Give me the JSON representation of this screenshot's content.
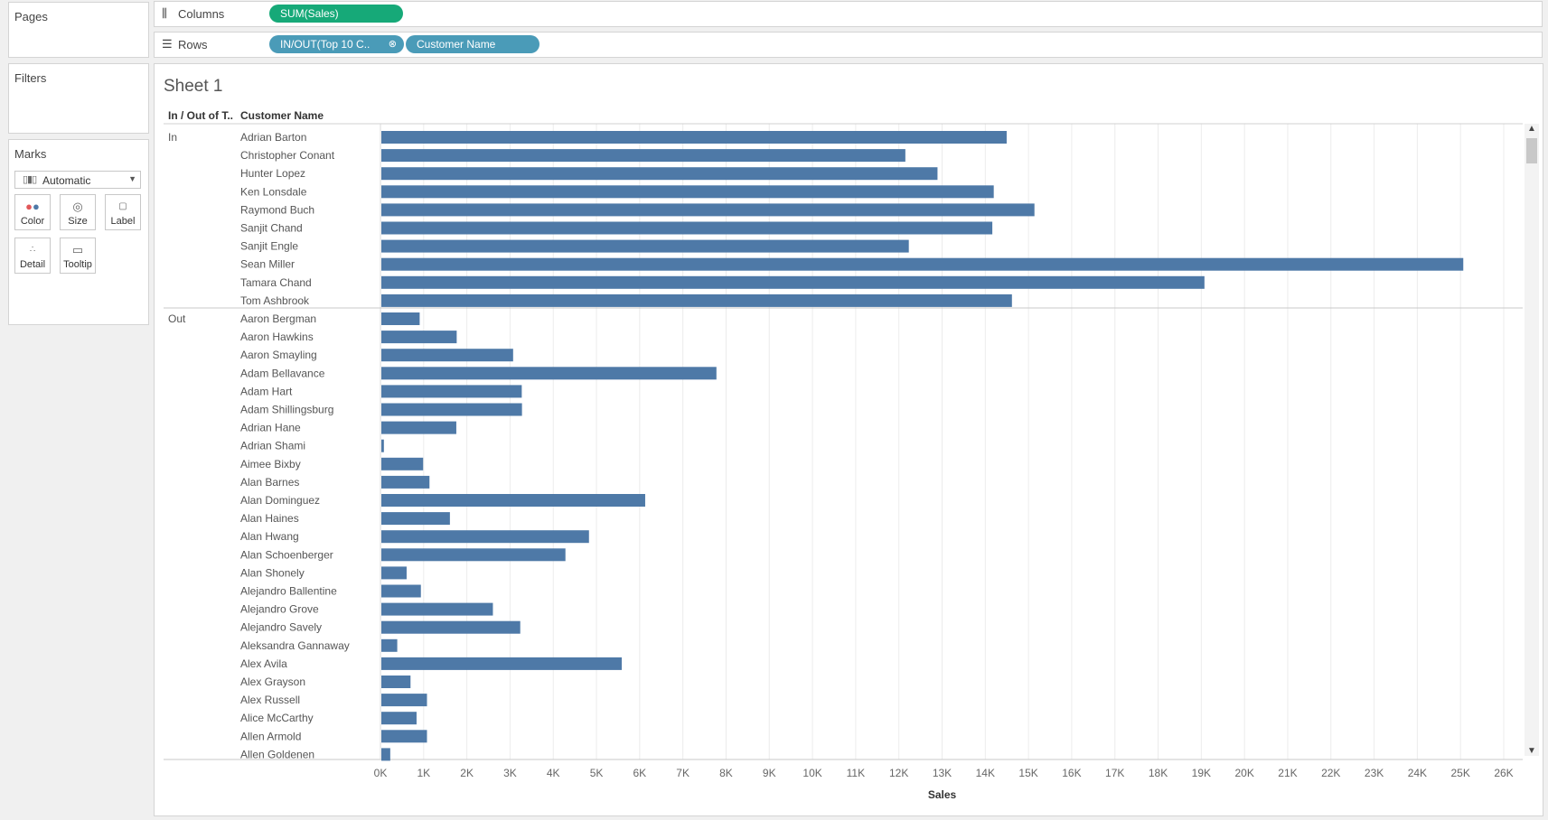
{
  "shelves": {
    "pages_label": "Pages",
    "filters_label": "Filters",
    "columns_label": "Columns",
    "rows_label": "Rows",
    "columns_pill": "SUM(Sales)",
    "rows_pills": [
      "IN/OUT(Top 10 C..",
      "Customer Name"
    ]
  },
  "marks": {
    "title": "Marks",
    "type": "Automatic",
    "buttons": [
      "Color",
      "Size",
      "Label",
      "Detail",
      "Tooltip"
    ]
  },
  "sheet": {
    "title": "Sheet 1",
    "header_inout": "In / Out of T..",
    "header_customer": "Customer Name"
  },
  "chart_data": {
    "type": "bar",
    "orientation": "horizontal",
    "xlabel": "Sales",
    "xlim": [
      0,
      26000
    ],
    "x_ticks": [
      "0K",
      "1K",
      "2K",
      "3K",
      "4K",
      "5K",
      "6K",
      "7K",
      "8K",
      "9K",
      "10K",
      "11K",
      "12K",
      "13K",
      "14K",
      "15K",
      "16K",
      "17K",
      "18K",
      "19K",
      "20K",
      "21K",
      "22K",
      "23K",
      "24K",
      "25K",
      "26K"
    ],
    "bar_color": "#4e79a7",
    "groups": [
      {
        "label": "In",
        "rows": [
          {
            "name": "Adrian Barton",
            "value": 14474
          },
          {
            "name": "Christopher Conant",
            "value": 12129
          },
          {
            "name": "Hunter Lopez",
            "value": 12873
          },
          {
            "name": "Ken Lonsdale",
            "value": 14175
          },
          {
            "name": "Raymond Buch",
            "value": 15117
          },
          {
            "name": "Sanjit Chand",
            "value": 14142
          },
          {
            "name": "Sanjit Engle",
            "value": 12209
          },
          {
            "name": "Sean Miller",
            "value": 25043
          },
          {
            "name": "Tamara Chand",
            "value": 19052
          },
          {
            "name": "Tom Ashbrook",
            "value": 14596
          }
        ]
      },
      {
        "label": "Out",
        "rows": [
          {
            "name": "Aaron Bergman",
            "value": 887
          },
          {
            "name": "Aaron Hawkins",
            "value": 1744
          },
          {
            "name": "Aaron Smayling",
            "value": 3050
          },
          {
            "name": "Adam Bellavance",
            "value": 7756
          },
          {
            "name": "Adam Hart",
            "value": 3250
          },
          {
            "name": "Adam Shillingsburg",
            "value": 3255
          },
          {
            "name": "Adrian Hane",
            "value": 1735
          },
          {
            "name": "Adrian Shami",
            "value": 59
          },
          {
            "name": "Aimee Bixby",
            "value": 967
          },
          {
            "name": "Alan Barnes",
            "value": 1114
          },
          {
            "name": "Alan Dominguez",
            "value": 6107
          },
          {
            "name": "Alan Haines",
            "value": 1587
          },
          {
            "name": "Alan Hwang",
            "value": 4806
          },
          {
            "name": "Alan Schoenberger",
            "value": 4261
          },
          {
            "name": "Alan Shonely",
            "value": 585
          },
          {
            "name": "Alejandro Ballentine",
            "value": 915
          },
          {
            "name": "Alejandro Grove",
            "value": 2582
          },
          {
            "name": "Alejandro Savely",
            "value": 3215
          },
          {
            "name": "Aleksandra Gannaway",
            "value": 368
          },
          {
            "name": "Alex Avila",
            "value": 5564
          },
          {
            "name": "Alex Grayson",
            "value": 675
          },
          {
            "name": "Alex Russell",
            "value": 1056
          },
          {
            "name": "Alice McCarthy",
            "value": 815
          },
          {
            "name": "Allen Armold",
            "value": 1056
          },
          {
            "name": "Allen Goldenen",
            "value": 206
          }
        ]
      }
    ]
  }
}
